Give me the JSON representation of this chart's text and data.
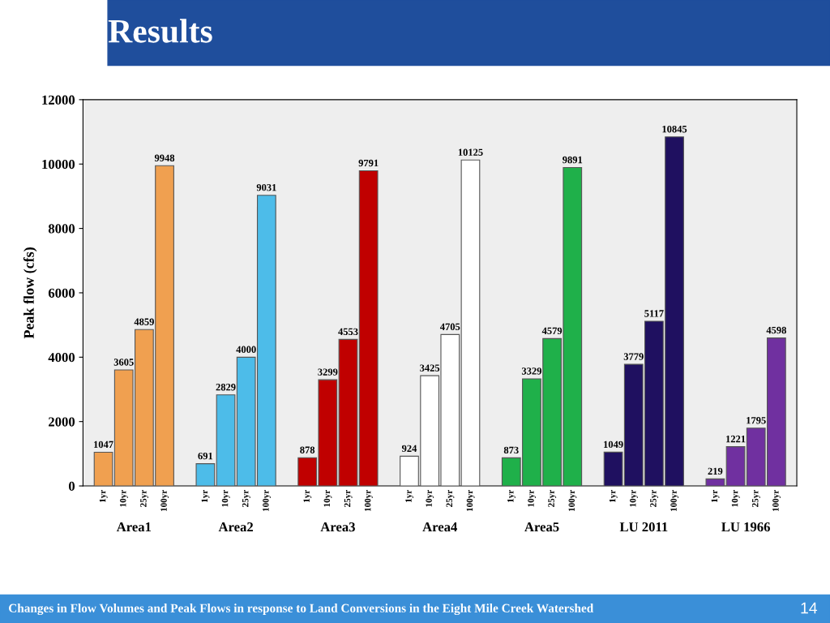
{
  "chart_data": {
    "type": "bar",
    "title": "Results",
    "ylabel": "Peak flow (cfs)",
    "categories": [
      "Area1",
      "Area2",
      "Area3",
      "Area4",
      "Area5",
      "LU 2011",
      "LU 1966"
    ],
    "series": [
      {
        "name": "1yr",
        "values": [
          1047,
          691,
          878,
          924,
          873,
          1049,
          219
        ],
        "colors": [
          "#f0a050",
          "#4dbce9",
          "#c00000",
          "#ffffff",
          "#1fb04a",
          "#1f1060",
          "#7030a0"
        ]
      },
      {
        "name": "10yr",
        "values": [
          3605,
          2829,
          3299,
          3425,
          3329,
          3779,
          1221
        ],
        "colors": [
          "#f0a050",
          "#4dbce9",
          "#c00000",
          "#ffffff",
          "#1fb04a",
          "#1f1060",
          "#7030a0"
        ]
      },
      {
        "name": "25yr",
        "values": [
          4859,
          4000,
          4553,
          4705,
          4579,
          5117,
          1795
        ],
        "colors": [
          "#f0a050",
          "#4dbce9",
          "#c00000",
          "#ffffff",
          "#1fb04a",
          "#1f1060",
          "#7030a0"
        ]
      },
      {
        "name": "100yr",
        "values": [
          9948,
          9031,
          9791,
          10125,
          9891,
          10845,
          4598
        ],
        "colors": [
          "#f0a050",
          "#4dbce9",
          "#c00000",
          "#ffffff",
          "#1fb04a",
          "#1f1060",
          "#7030a0"
        ]
      }
    ],
    "ylim": [
      0,
      12000
    ],
    "yticks": [
      0,
      2000,
      4000,
      6000,
      8000,
      10000,
      12000
    ],
    "data_labels": true,
    "grid": false,
    "legend": false,
    "annotations": [
      "Changes in Flow Volumes and Peak Flows in response to Land Conversions in the Eight Mile Creek Watershed",
      "14"
    ]
  }
}
